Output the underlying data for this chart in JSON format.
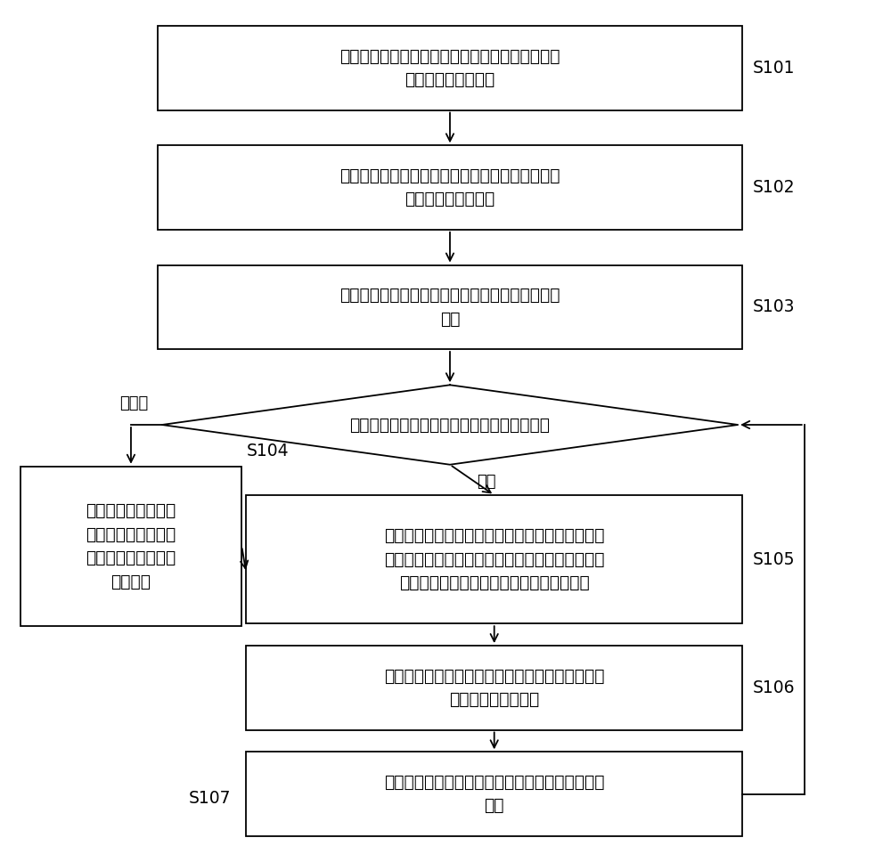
{
  "background_color": "#ffffff",
  "boxes": {
    "S101": {
      "text": "响应启动检测操作指令，按预设第一输出功率发送\n第一检测信号至漏缆",
      "tag": "S101"
    },
    "S102": {
      "text": "获取所述当前从检测设备所检测到的所述第一检测\n信号的第一实际功率",
      "tag": "S102"
    },
    "S103": {
      "text": "计算所述第一实际功率和所述第一输出功率的功率\n差值",
      "tag": "S103"
    },
    "diamond": {
      "text": "判断该功率差值是否符合预设的插入损耗要求",
      "tag": ""
    },
    "S104": {
      "text": "判定该当前从检测设\n备和上一检测设备之\n间的漏缆线路存在问\n题并警报",
      "tag": "S104"
    },
    "S105": {
      "text": "控制所述当前从检测设备按预设第二输出功率发送\n第二检测信号至漏缆，并将所述当前从检测设备对\n应的下一从检测设备默认为当前从检测设备",
      "tag": "S105"
    },
    "S106": {
      "text": "获取所述当前从检测设备所检测到的所述第二检测\n信号的第二实际功率",
      "tag": "S106"
    },
    "S107": {
      "text": "计算所述第二实际功率和所述第二输出功率的功率\n差值",
      "tag": "S107"
    }
  },
  "label_bufu": "不符合",
  "label_fuhe": "符合"
}
